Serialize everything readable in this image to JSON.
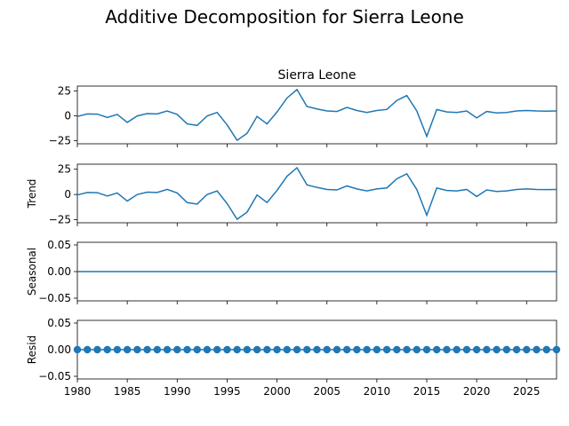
{
  "title": "Additive Decomposition for Sierra Leone",
  "chart_data": {
    "type": "line",
    "title": "Additive Decomposition for Sierra Leone",
    "x": [
      1980,
      1981,
      1982,
      1983,
      1984,
      1985,
      1986,
      1987,
      1988,
      1989,
      1990,
      1991,
      1992,
      1993,
      1994,
      1995,
      1996,
      1997,
      1998,
      1999,
      2000,
      2001,
      2002,
      2003,
      2004,
      2005,
      2006,
      2007,
      2008,
      2009,
      2010,
      2011,
      2012,
      2013,
      2014,
      2015,
      2016,
      2017,
      2018,
      2019,
      2020,
      2021,
      2022,
      2023,
      2024,
      2025,
      2026,
      2027,
      2028
    ],
    "xlim": [
      1980,
      2028
    ],
    "xticks": [
      "1980",
      "1985",
      "1990",
      "1995",
      "2000",
      "2005",
      "2010",
      "2015",
      "2020",
      "2025"
    ],
    "line_color": "#1f77b4",
    "panels": [
      {
        "name": "observed",
        "title": "Sierra Leone",
        "ylabel": "",
        "type": "line",
        "ylim": [
          -28,
          30
        ],
        "yticks": [
          "25",
          "0",
          "−25"
        ],
        "ytick_values": [
          25,
          0,
          -25
        ],
        "values": [
          -0.5,
          2.0,
          1.8,
          -1.5,
          1.5,
          -6.5,
          0.0,
          2.3,
          2.0,
          5.0,
          1.5,
          -8.0,
          -9.5,
          0.0,
          3.5,
          -9.0,
          -24.5,
          -17.5,
          -0.5,
          -8.0,
          4.0,
          18.0,
          26.5,
          9.5,
          7.0,
          5.0,
          4.5,
          8.5,
          5.5,
          3.5,
          5.5,
          6.5,
          15.5,
          20.5,
          5.0,
          -20.5,
          6.5,
          4.0,
          3.5,
          5.0,
          -2.0,
          4.5,
          3.0,
          3.5,
          5.0,
          5.5,
          5.0,
          4.8,
          5.0
        ]
      },
      {
        "name": "trend",
        "title": "",
        "ylabel": "Trend",
        "type": "line",
        "ylim": [
          -28,
          30
        ],
        "yticks": [
          "25",
          "0",
          "−25"
        ],
        "ytick_values": [
          25,
          0,
          -25
        ],
        "values": [
          -0.5,
          2.0,
          1.8,
          -1.5,
          1.5,
          -6.5,
          0.0,
          2.3,
          2.0,
          5.0,
          1.5,
          -8.0,
          -9.5,
          0.0,
          3.5,
          -9.0,
          -24.5,
          -17.5,
          -0.5,
          -8.0,
          4.0,
          18.0,
          26.5,
          9.5,
          7.0,
          5.0,
          4.5,
          8.5,
          5.5,
          3.5,
          5.5,
          6.5,
          15.5,
          20.5,
          5.0,
          -20.5,
          6.5,
          4.0,
          3.5,
          5.0,
          -2.0,
          4.5,
          3.0,
          3.5,
          5.0,
          5.5,
          5.0,
          4.8,
          5.0
        ]
      },
      {
        "name": "seasonal",
        "title": "",
        "ylabel": "Seasonal",
        "type": "line",
        "ylim": [
          -0.055,
          0.055
        ],
        "yticks": [
          "0.05",
          "0.00",
          "−0.05"
        ],
        "ytick_values": [
          0.05,
          0.0,
          -0.05
        ],
        "values": [
          0,
          0,
          0,
          0,
          0,
          0,
          0,
          0,
          0,
          0,
          0,
          0,
          0,
          0,
          0,
          0,
          0,
          0,
          0,
          0,
          0,
          0,
          0,
          0,
          0,
          0,
          0,
          0,
          0,
          0,
          0,
          0,
          0,
          0,
          0,
          0,
          0,
          0,
          0,
          0,
          0,
          0,
          0,
          0,
          0,
          0,
          0,
          0,
          0
        ]
      },
      {
        "name": "resid",
        "title": "",
        "ylabel": "Resid",
        "type": "scatter",
        "ylim": [
          -0.055,
          0.055
        ],
        "yticks": [
          "0.05",
          "0.00",
          "−0.05"
        ],
        "ytick_values": [
          0.05,
          0.0,
          -0.05
        ],
        "values": [
          0,
          0,
          0,
          0,
          0,
          0,
          0,
          0,
          0,
          0,
          0,
          0,
          0,
          0,
          0,
          0,
          0,
          0,
          0,
          0,
          0,
          0,
          0,
          0,
          0,
          0,
          0,
          0,
          0,
          0,
          0,
          0,
          0,
          0,
          0,
          0,
          0,
          0,
          0,
          0,
          0,
          0,
          0,
          0,
          0,
          0,
          0,
          0,
          0
        ]
      }
    ]
  }
}
